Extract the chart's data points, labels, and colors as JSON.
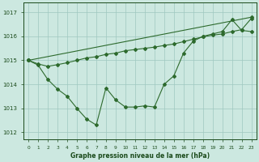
{
  "series1": {
    "x": [
      0,
      1,
      2,
      3,
      4,
      5,
      6,
      7,
      8,
      9,
      10,
      11,
      12,
      13,
      14,
      15,
      16,
      17,
      18,
      19,
      20,
      21,
      22,
      23
    ],
    "y": [
      1015.0,
      1014.8,
      1014.2,
      1013.8,
      1013.5,
      1013.0,
      1012.55,
      1012.3,
      1013.85,
      1013.35,
      1013.05,
      1013.05,
      1013.1,
      1013.05,
      1014.0,
      1014.35,
      1015.3,
      1015.8,
      1016.0,
      1016.1,
      1016.2,
      1016.7,
      1016.25,
      1016.2
    ]
  },
  "series2": {
    "x": [
      0,
      23
    ],
    "y": [
      1015.0,
      1016.8
    ]
  },
  "series3": {
    "x": [
      0,
      1,
      2,
      3,
      4,
      5,
      6,
      7,
      8,
      9,
      10,
      11,
      12,
      13,
      14,
      15,
      16,
      17,
      18,
      19,
      20,
      21,
      22,
      23
    ],
    "y": [
      1015.0,
      1014.85,
      1014.75,
      1014.82,
      1014.9,
      1015.0,
      1015.1,
      1015.15,
      1015.25,
      1015.3,
      1015.4,
      1015.45,
      1015.5,
      1015.55,
      1015.62,
      1015.68,
      1015.78,
      1015.88,
      1015.98,
      1016.05,
      1016.1,
      1016.2,
      1016.28,
      1016.75
    ]
  },
  "line_color": "#2d6a2d",
  "bg_color": "#cce8e0",
  "grid_color": "#9fc8bf",
  "text_color": "#1a4a1a",
  "xlabel": "Graphe pression niveau de la mer (hPa)",
  "ylim": [
    1011.7,
    1017.4
  ],
  "xlim": [
    -0.5,
    23.5
  ],
  "yticks": [
    1012,
    1013,
    1014,
    1015,
    1016,
    1017
  ],
  "xticks": [
    0,
    1,
    2,
    3,
    4,
    5,
    6,
    7,
    8,
    9,
    10,
    11,
    12,
    13,
    14,
    15,
    16,
    17,
    18,
    19,
    20,
    21,
    22,
    23
  ]
}
